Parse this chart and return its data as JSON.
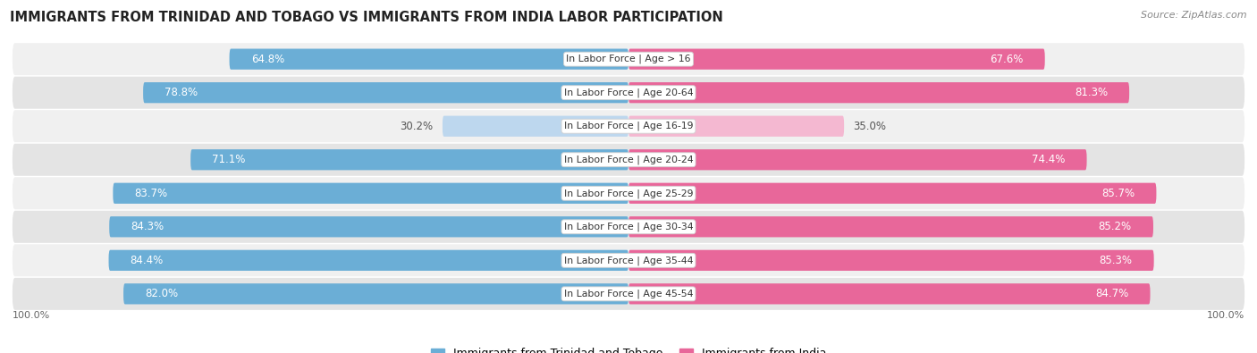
{
  "title": "IMMIGRANTS FROM TRINIDAD AND TOBAGO VS IMMIGRANTS FROM INDIA LABOR PARTICIPATION",
  "source": "Source: ZipAtlas.com",
  "categories": [
    "In Labor Force | Age > 16",
    "In Labor Force | Age 20-64",
    "In Labor Force | Age 16-19",
    "In Labor Force | Age 20-24",
    "In Labor Force | Age 25-29",
    "In Labor Force | Age 30-34",
    "In Labor Force | Age 35-44",
    "In Labor Force | Age 45-54"
  ],
  "trinidad_values": [
    64.8,
    78.8,
    30.2,
    71.1,
    83.7,
    84.3,
    84.4,
    82.0
  ],
  "india_values": [
    67.6,
    81.3,
    35.0,
    74.4,
    85.7,
    85.2,
    85.3,
    84.7
  ],
  "trinidad_color": "#6baed6",
  "india_color": "#e8679a",
  "trinidad_light_color": "#bdd7ee",
  "india_light_color": "#f4b8d1",
  "row_bg_light": "#f0f0f0",
  "row_bg_dark": "#e4e4e4",
  "label_white": "#ffffff",
  "label_dark": "#555555",
  "max_value": 100.0,
  "legend_trinidad": "Immigrants from Trinidad and Tobago",
  "legend_india": "Immigrants from India",
  "figsize": [
    14.06,
    3.95
  ],
  "dpi": 100
}
